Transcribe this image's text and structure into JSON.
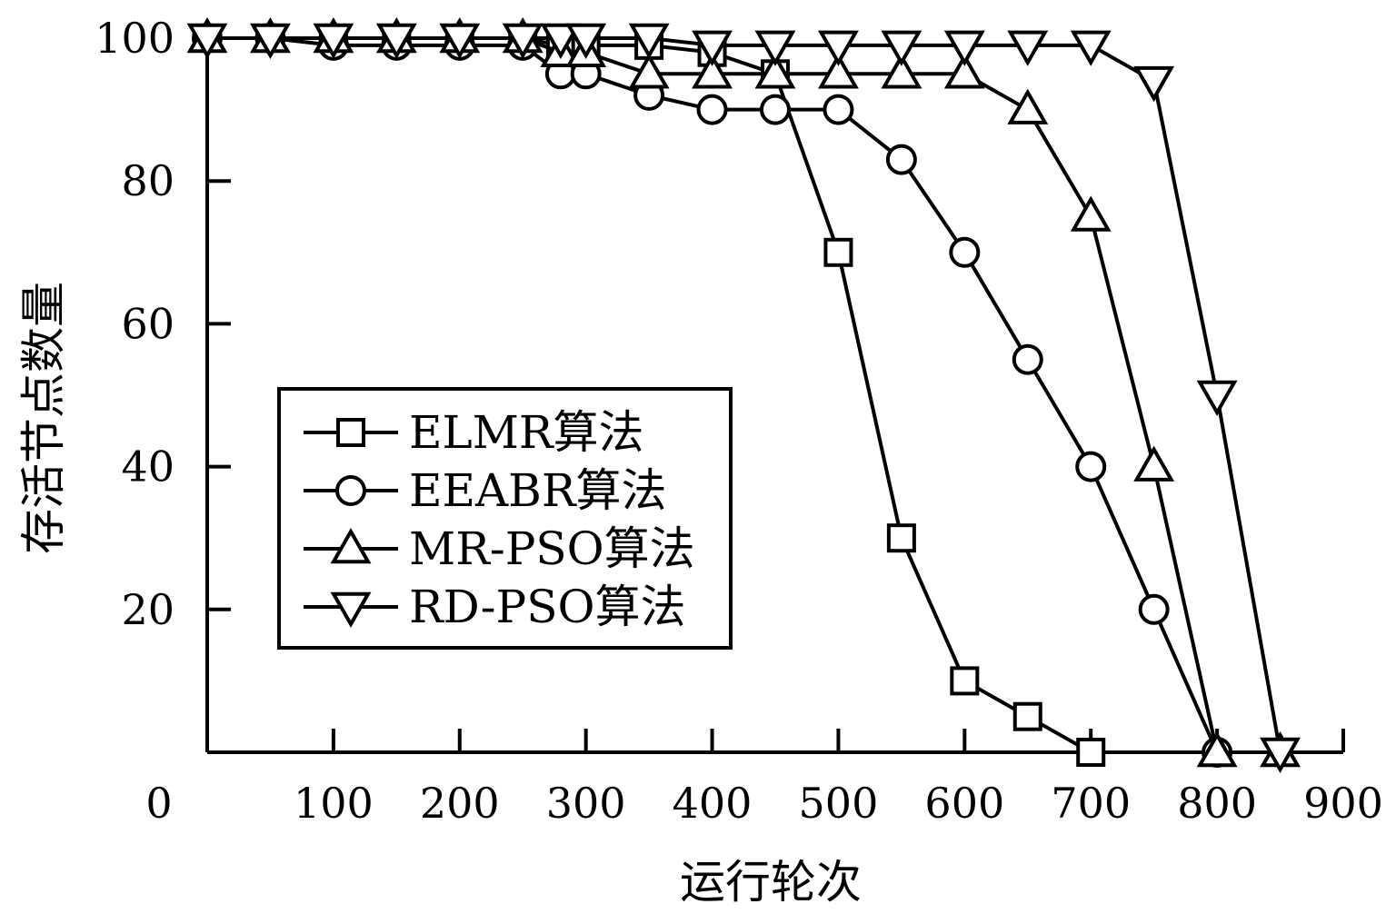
{
  "chart_data": {
    "type": "line",
    "xlabel": "运行轮次",
    "ylabel": "存活节点数量",
    "xlim": [
      0,
      900
    ],
    "ylim": [
      0,
      100
    ],
    "xticks": [
      0,
      100,
      200,
      300,
      400,
      500,
      600,
      700,
      800,
      900
    ],
    "yticks": [
      20,
      40,
      60,
      80,
      100
    ],
    "grid": false,
    "legend_position": "center-left",
    "colors": {
      "line": "#000000",
      "background": "#ffffff"
    },
    "series": [
      {
        "name": "ELMR算法",
        "marker": "square",
        "x": [
          0,
          50,
          100,
          150,
          200,
          250,
          280,
          300,
          350,
          400,
          450,
          500,
          550,
          600,
          650,
          700
        ],
        "y": [
          100,
          100,
          100,
          100,
          100,
          100,
          99,
          99,
          99,
          98,
          95,
          70,
          30,
          10,
          5,
          0
        ]
      },
      {
        "name": "EEABR算法",
        "marker": "circle",
        "x": [
          0,
          50,
          100,
          150,
          200,
          250,
          280,
          300,
          350,
          400,
          450,
          500,
          550,
          600,
          650,
          700,
          750,
          800
        ],
        "y": [
          100,
          100,
          99,
          99,
          99,
          99,
          95,
          95,
          92,
          90,
          90,
          90,
          83,
          70,
          55,
          40,
          20,
          0
        ]
      },
      {
        "name": "MR-PSO算法",
        "marker": "triangle-up",
        "x": [
          0,
          50,
          100,
          150,
          200,
          250,
          280,
          300,
          350,
          400,
          450,
          500,
          550,
          600,
          650,
          700,
          750,
          800,
          850
        ],
        "y": [
          100,
          100,
          100,
          100,
          100,
          100,
          98,
          98,
          95,
          95,
          95,
          95,
          95,
          95,
          90,
          75,
          40,
          0,
          0
        ]
      },
      {
        "name": "RD-PSO算法",
        "marker": "triangle-down",
        "x": [
          0,
          50,
          100,
          150,
          200,
          250,
          280,
          300,
          350,
          400,
          450,
          500,
          550,
          600,
          650,
          700,
          750,
          800,
          850
        ],
        "y": [
          100,
          100,
          100,
          100,
          100,
          100,
          100,
          100,
          100,
          99,
          99,
          99,
          99,
          99,
          99,
          99,
          94,
          50,
          0
        ]
      }
    ]
  }
}
